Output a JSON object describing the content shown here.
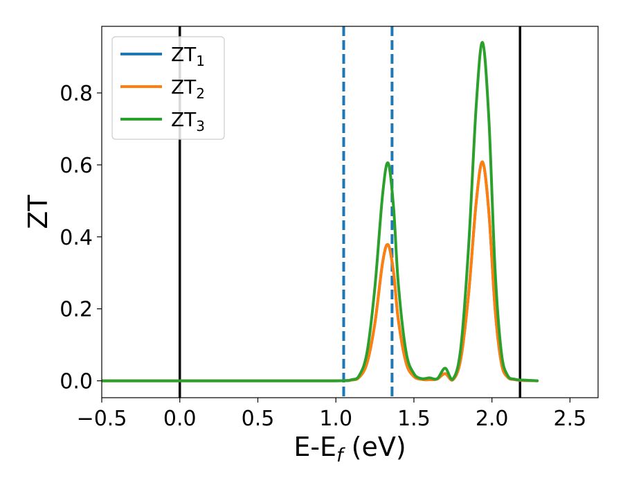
{
  "chart_data": {
    "type": "line",
    "xlabel": "E-E",
    "xlabel_sub": "f",
    "xlabel_unit": " (eV)",
    "ylabel": "ZT",
    "xlim": [
      -0.5,
      2.68
    ],
    "ylim": [
      -0.047,
      0.985
    ],
    "xticks": [
      -0.5,
      0.0,
      0.5,
      1.0,
      1.5,
      2.0,
      2.5
    ],
    "xtick_labels": [
      "−0.5",
      "0.0",
      "0.5",
      "1.0",
      "1.5",
      "2.0",
      "2.5"
    ],
    "yticks": [
      0.0,
      0.2,
      0.4,
      0.6,
      0.8
    ],
    "ytick_labels": [
      "0.0",
      "0.2",
      "0.4",
      "0.6",
      "0.8"
    ],
    "legend_position": "top-left",
    "grid": false,
    "vlines": [
      {
        "x": 0.0,
        "style": "solid",
        "color": "#000000"
      },
      {
        "x": 2.18,
        "style": "solid",
        "color": "#000000"
      },
      {
        "x": 1.05,
        "style": "dashed",
        "color": "#1f77b4"
      },
      {
        "x": 1.36,
        "style": "dashed",
        "color": "#1f77b4"
      }
    ],
    "series": [
      {
        "name": "ZT",
        "name_sub": "1",
        "color": "#1f77b4",
        "x": [
          -0.5,
          0.0,
          0.5,
          1.0,
          1.1,
          1.15,
          1.2,
          1.25,
          1.3,
          1.335,
          1.37,
          1.4,
          1.45,
          1.5,
          1.55,
          1.6,
          1.65,
          1.7,
          1.75,
          1.8,
          1.85,
          1.9,
          1.94,
          1.98,
          2.02,
          2.06,
          2.1,
          2.15,
          2.2,
          2.29
        ],
        "y": [
          0,
          0,
          0,
          0,
          0.002,
          0.01,
          0.05,
          0.16,
          0.33,
          0.378,
          0.3,
          0.17,
          0.05,
          0.012,
          0.004,
          0.003,
          0.005,
          0.02,
          0.003,
          0.06,
          0.24,
          0.5,
          0.608,
          0.47,
          0.2,
          0.05,
          0.01,
          0.003,
          0.001,
          0.0
        ]
      },
      {
        "name": "ZT",
        "name_sub": "2",
        "color": "#ff7f0e",
        "x": [
          -0.5,
          0.0,
          0.5,
          1.0,
          1.1,
          1.15,
          1.2,
          1.25,
          1.3,
          1.335,
          1.37,
          1.4,
          1.45,
          1.5,
          1.55,
          1.6,
          1.65,
          1.7,
          1.75,
          1.8,
          1.85,
          1.9,
          1.94,
          1.98,
          2.02,
          2.06,
          2.1,
          2.15,
          2.2,
          2.29
        ],
        "y": [
          0,
          0,
          0,
          0,
          0.002,
          0.01,
          0.05,
          0.16,
          0.33,
          0.378,
          0.3,
          0.17,
          0.05,
          0.012,
          0.004,
          0.003,
          0.005,
          0.02,
          0.003,
          0.06,
          0.24,
          0.5,
          0.608,
          0.47,
          0.2,
          0.05,
          0.01,
          0.003,
          0.001,
          0.0
        ]
      },
      {
        "name": "ZT",
        "name_sub": "3",
        "color": "#2ca02c",
        "x": [
          -0.5,
          0.0,
          0.5,
          1.0,
          1.1,
          1.15,
          1.2,
          1.25,
          1.3,
          1.335,
          1.37,
          1.4,
          1.45,
          1.5,
          1.55,
          1.6,
          1.65,
          1.7,
          1.75,
          1.8,
          1.85,
          1.9,
          1.94,
          1.98,
          2.02,
          2.06,
          2.1,
          2.15,
          2.2,
          2.29
        ],
        "y": [
          0,
          0,
          0,
          0,
          0.003,
          0.015,
          0.08,
          0.26,
          0.52,
          0.605,
          0.48,
          0.27,
          0.08,
          0.02,
          0.006,
          0.008,
          0.006,
          0.035,
          0.005,
          0.09,
          0.37,
          0.77,
          0.94,
          0.73,
          0.31,
          0.08,
          0.015,
          0.004,
          0.002,
          0.0
        ]
      }
    ]
  }
}
